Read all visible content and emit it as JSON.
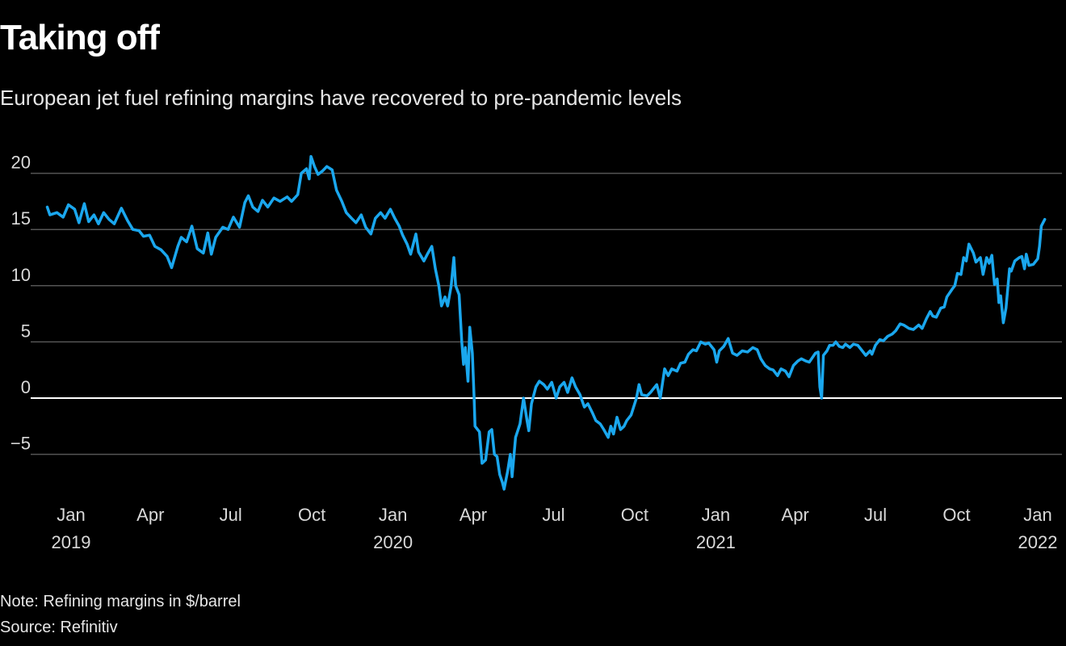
{
  "title": "Taking off",
  "subtitle": "European jet fuel refining margins have recovered to pre-pandemic levels",
  "note": "Note: Refining margins in $/barrel",
  "source": "Source: Refinitiv",
  "colors": {
    "line": "#1aa7ee",
    "grid": "#555555",
    "zero_line": "#ffffff",
    "background": "#000000"
  },
  "chart_data": {
    "type": "line",
    "title": "Taking off",
    "xlabel": "",
    "ylabel": "",
    "ylim": [
      -9,
      23
    ],
    "grid": true,
    "y_ticks": [
      {
        "value": 20,
        "label": "20"
      },
      {
        "value": 15,
        "label": "15"
      },
      {
        "value": 10,
        "label": "10"
      },
      {
        "value": 5,
        "label": "5"
      },
      {
        "value": 0,
        "label": "0"
      },
      {
        "value": -5,
        "label": "−5"
      }
    ],
    "x_ticks": [
      {
        "date": "2019-01-01",
        "label": "Jan",
        "year": "2019"
      },
      {
        "date": "2019-04-01",
        "label": "Apr",
        "year": ""
      },
      {
        "date": "2019-07-01",
        "label": "Jul",
        "year": ""
      },
      {
        "date": "2019-10-01",
        "label": "Oct",
        "year": ""
      },
      {
        "date": "2020-01-01",
        "label": "Jan",
        "year": "2020"
      },
      {
        "date": "2020-04-01",
        "label": "Apr",
        "year": ""
      },
      {
        "date": "2020-07-01",
        "label": "Jul",
        "year": ""
      },
      {
        "date": "2020-10-01",
        "label": "Oct",
        "year": ""
      },
      {
        "date": "2021-01-01",
        "label": "Jan",
        "year": "2021"
      },
      {
        "date": "2021-04-01",
        "label": "Apr",
        "year": ""
      },
      {
        "date": "2021-07-01",
        "label": "Jul",
        "year": ""
      },
      {
        "date": "2021-10-01",
        "label": "Oct",
        "year": ""
      },
      {
        "date": "2022-01-01",
        "label": "Jan",
        "year": "2022"
      }
    ],
    "x": [
      "2018-12-05",
      "2018-12-08",
      "2018-12-16",
      "2018-12-23",
      "2018-12-29",
      "2019-01-05",
      "2019-01-10",
      "2019-01-16",
      "2019-01-21",
      "2019-01-27",
      "2019-02-01",
      "2019-02-07",
      "2019-02-13",
      "2019-02-19",
      "2019-02-27",
      "2019-03-06",
      "2019-03-12",
      "2019-03-19",
      "2019-03-24",
      "2019-03-31",
      "2019-04-06",
      "2019-04-13",
      "2019-04-20",
      "2019-04-25",
      "2019-05-02",
      "2019-05-06",
      "2019-05-12",
      "2019-05-18",
      "2019-05-24",
      "2019-05-31",
      "2019-06-05",
      "2019-06-09",
      "2019-06-14",
      "2019-06-22",
      "2019-06-28",
      "2019-07-04",
      "2019-07-11",
      "2019-07-17",
      "2019-07-21",
      "2019-07-26",
      "2019-08-01",
      "2019-08-06",
      "2019-08-12",
      "2019-08-19",
      "2019-08-26",
      "2019-09-03",
      "2019-09-08",
      "2019-09-15",
      "2019-09-19",
      "2019-09-25",
      "2019-09-28",
      "2019-09-30",
      "2019-10-04",
      "2019-10-08",
      "2019-10-13",
      "2019-10-18",
      "2019-10-24",
      "2019-10-29",
      "2019-11-04",
      "2019-11-09",
      "2019-11-15",
      "2019-11-20",
      "2019-11-26",
      "2019-12-01",
      "2019-12-07",
      "2019-12-12",
      "2019-12-18",
      "2019-12-23",
      "2019-12-29",
      "2020-01-03",
      "2020-01-08",
      "2020-01-12",
      "2020-01-17",
      "2020-01-21",
      "2020-01-27",
      "2020-01-30",
      "2020-02-05",
      "2020-02-09",
      "2020-02-14",
      "2020-02-18",
      "2020-02-22",
      "2020-02-25",
      "2020-02-29",
      "2020-03-03",
      "2020-03-07",
      "2020-03-10",
      "2020-03-12",
      "2020-03-16",
      "2020-03-19",
      "2020-03-21",
      "2020-03-23",
      "2020-03-26",
      "2020-03-28",
      "2020-03-31",
      "2020-04-02",
      "2020-04-03",
      "2020-04-08",
      "2020-04-11",
      "2020-04-15",
      "2020-04-19",
      "2020-04-22",
      "2020-04-25",
      "2020-04-28",
      "2020-05-01",
      "2020-05-04",
      "2020-05-06",
      "2020-05-10",
      "2020-05-13",
      "2020-05-15",
      "2020-05-19",
      "2020-05-24",
      "2020-05-28",
      "2020-06-01",
      "2020-06-03",
      "2020-06-06",
      "2020-06-11",
      "2020-06-15",
      "2020-06-20",
      "2020-06-24",
      "2020-06-29",
      "2020-07-04",
      "2020-07-08",
      "2020-07-13",
      "2020-07-17",
      "2020-07-22",
      "2020-07-26",
      "2020-07-31",
      "2020-08-05",
      "2020-08-09",
      "2020-08-14",
      "2020-08-18",
      "2020-08-23",
      "2020-08-27",
      "2020-09-01",
      "2020-09-04",
      "2020-09-07",
      "2020-09-11",
      "2020-09-15",
      "2020-09-19",
      "2020-09-22",
      "2020-09-27",
      "2020-10-03",
      "2020-10-06",
      "2020-10-09",
      "2020-10-15",
      "2020-10-19",
      "2020-10-26",
      "2020-10-30",
      "2020-11-04",
      "2020-11-08",
      "2020-11-12",
      "2020-11-18",
      "2020-11-22",
      "2020-11-27",
      "2020-12-01",
      "2020-12-06",
      "2020-12-10",
      "2020-12-15",
      "2020-12-20",
      "2020-12-24",
      "2020-12-30",
      "2021-01-02",
      "2021-01-05",
      "2021-01-10",
      "2021-01-15",
      "2021-01-20",
      "2021-01-25",
      "2021-01-31",
      "2021-02-06",
      "2021-02-12",
      "2021-02-17",
      "2021-02-21",
      "2021-02-26",
      "2021-03-03",
      "2021-03-07",
      "2021-03-12",
      "2021-03-16",
      "2021-03-21",
      "2021-03-25",
      "2021-03-30",
      "2021-04-04",
      "2021-04-08",
      "2021-04-13",
      "2021-04-17",
      "2021-04-24",
      "2021-04-27",
      "2021-04-29",
      "2021-05-01",
      "2021-05-03",
      "2021-05-07",
      "2021-05-10",
      "2021-05-14",
      "2021-05-17",
      "2021-05-21",
      "2021-05-25",
      "2021-05-28",
      "2021-06-02",
      "2021-06-06",
      "2021-06-11",
      "2021-06-16",
      "2021-06-20",
      "2021-06-25",
      "2021-06-27",
      "2021-07-01",
      "2021-07-06",
      "2021-07-10",
      "2021-07-15",
      "2021-07-20",
      "2021-07-24",
      "2021-07-29",
      "2021-08-02",
      "2021-08-08",
      "2021-08-13",
      "2021-08-19",
      "2021-08-23",
      "2021-08-28",
      "2021-09-01",
      "2021-09-04",
      "2021-09-08",
      "2021-09-13",
      "2021-09-17",
      "2021-09-20",
      "2021-09-26",
      "2021-09-29",
      "2021-10-02",
      "2021-10-06",
      "2021-10-09",
      "2021-10-12",
      "2021-10-15",
      "2021-10-20",
      "2021-10-23",
      "2021-10-28",
      "2021-10-31",
      "2021-11-04",
      "2021-11-07",
      "2021-11-10",
      "2021-11-13",
      "2021-11-16",
      "2021-11-18",
      "2021-11-20",
      "2021-11-23",
      "2021-11-26",
      "2021-11-30",
      "2021-12-02",
      "2021-12-06",
      "2021-12-11",
      "2021-12-14",
      "2021-12-17",
      "2021-12-19",
      "2021-12-22",
      "2021-12-27",
      "2022-01-01",
      "2022-01-03",
      "2022-01-05",
      "2022-01-09"
    ],
    "y": [
      17.0,
      16.3,
      16.5,
      16.1,
      17.2,
      16.8,
      15.6,
      17.3,
      15.7,
      16.3,
      15.5,
      16.5,
      15.9,
      15.5,
      16.9,
      15.8,
      15.0,
      14.9,
      14.4,
      14.5,
      13.5,
      13.2,
      12.6,
      11.6,
      13.5,
      14.3,
      13.9,
      15.3,
      13.3,
      12.9,
      14.7,
      12.8,
      14.3,
      15.2,
      15.0,
      16.1,
      15.2,
      17.4,
      18.0,
      17.0,
      16.6,
      17.6,
      17.0,
      17.8,
      17.5,
      17.9,
      17.5,
      18.1,
      20.0,
      20.4,
      19.5,
      21.5,
      20.6,
      19.9,
      20.2,
      20.6,
      20.3,
      18.5,
      17.5,
      16.5,
      16.0,
      15.6,
      16.3,
      15.2,
      14.6,
      16.0,
      16.5,
      16.0,
      16.8,
      16.0,
      15.3,
      14.5,
      13.7,
      12.8,
      14.6,
      13.0,
      12.2,
      12.8,
      13.5,
      11.5,
      10.0,
      8.2,
      9.0,
      8.2,
      10.0,
      12.5,
      10.0,
      9.2,
      5.0,
      3.0,
      4.5,
      1.5,
      6.3,
      4.0,
      0.0,
      -2.5,
      -3.0,
      -5.8,
      -5.5,
      -3.0,
      -2.8,
      -5.0,
      -5.2,
      -6.8,
      -7.5,
      -8.1,
      -6.5,
      -5.0,
      -7.0,
      -3.5,
      -2.3,
      0.0,
      -2.0,
      -2.9,
      -0.5,
      1.0,
      1.5,
      1.2,
      0.8,
      1.4,
      0.0,
      1.0,
      1.4,
      0.5,
      1.8,
      1.0,
      0.3,
      -0.8,
      -0.5,
      -1.3,
      -2.0,
      -2.3,
      -2.8,
      -3.5,
      -2.5,
      -3.2,
      -1.7,
      -2.8,
      -2.5,
      -2.0,
      -1.5,
      0.0,
      1.2,
      0.3,
      0.2,
      0.5,
      1.2,
      0.0,
      2.6,
      2.0,
      2.6,
      2.4,
      3.1,
      3.2,
      3.9,
      4.3,
      4.2,
      5.0,
      4.8,
      4.9,
      4.3,
      3.2,
      4.2,
      4.6,
      5.3,
      4.0,
      3.8,
      4.2,
      4.1,
      4.5,
      4.3,
      3.5,
      2.9,
      2.6,
      2.5,
      2.0,
      2.6,
      2.4,
      1.9,
      2.9,
      3.3,
      3.5,
      3.3,
      3.2,
      4.0,
      4.1,
      1.0,
      0.0,
      3.8,
      4.2,
      4.7,
      4.7,
      5.0,
      4.6,
      4.5,
      4.8,
      4.5,
      4.8,
      4.7,
      4.2,
      3.8,
      4.2,
      3.9,
      4.7,
      5.2,
      5.1,
      5.5,
      5.7,
      6.0,
      6.6,
      6.5,
      6.2,
      6.1,
      6.5,
      6.2,
      7.1,
      7.7,
      7.3,
      7.2,
      8.0,
      8.1,
      9.0,
      9.7,
      10.0,
      11.1,
      11.0,
      12.5,
      12.2,
      13.7,
      12.9,
      12.1,
      12.5,
      11.0,
      12.5,
      12.0,
      12.7,
      10.1,
      10.6,
      8.5,
      9.1,
      6.7,
      8.0,
      11.5,
      11.3,
      12.2,
      12.5,
      12.6,
      11.5,
      12.8,
      11.8,
      11.9,
      12.4,
      13.5,
      15.3,
      15.9
    ]
  }
}
